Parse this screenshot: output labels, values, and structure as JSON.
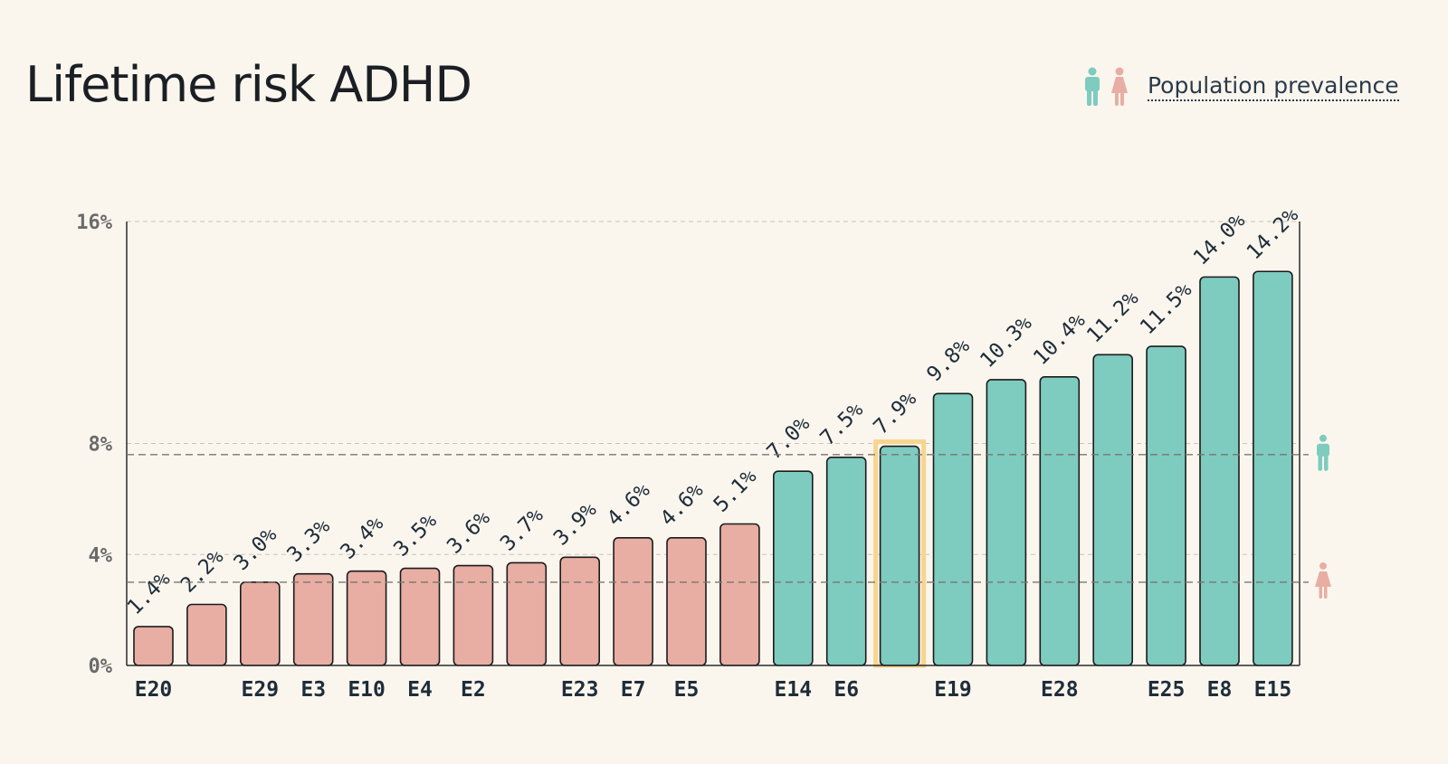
{
  "title": "Lifetime risk ADHD",
  "legend": {
    "label": "Population prevalence",
    "male_icon": "male-person-icon",
    "female_icon": "female-person-icon"
  },
  "colors": {
    "female": "#e8aea3",
    "male": "#7ecbbf",
    "highlight": "#f6d58e",
    "text": "#1f2d3a",
    "axis": "#6b6b6b"
  },
  "chart_data": {
    "type": "bar",
    "title": "Lifetime risk ADHD",
    "xlabel": "",
    "ylabel": "",
    "ylim": [
      0,
      16
    ],
    "yticks": [
      "0%",
      "4%",
      "8%",
      "16%"
    ],
    "ytick_values": [
      0,
      4,
      8,
      16
    ],
    "grid": true,
    "categories": [
      "E20",
      "",
      "E29",
      "E3",
      "E10",
      "E4",
      "E2",
      "",
      "E23",
      "E7",
      "E5",
      "",
      "E14",
      "E6",
      "",
      "E19",
      "",
      "E28",
      "",
      "E25",
      "E8",
      "E15"
    ],
    "values": [
      1.4,
      2.2,
      3.0,
      3.3,
      3.4,
      3.5,
      3.6,
      3.7,
      3.9,
      4.6,
      4.6,
      5.1,
      7.0,
      7.5,
      7.9,
      9.8,
      10.3,
      10.4,
      11.2,
      11.5,
      14.0,
      14.2
    ],
    "value_labels": [
      "1.4%",
      "2.2%",
      "3.0%",
      "3.3%",
      "3.4%",
      "3.5%",
      "3.6%",
      "3.7%",
      "3.9%",
      "4.6%",
      "4.6%",
      "5.1%",
      "7.0%",
      "7.5%",
      "7.9%",
      "9.8%",
      "10.3%",
      "10.4%",
      "11.2%",
      "11.5%",
      "14.0%",
      "14.2%"
    ],
    "groups": [
      "female",
      "female",
      "female",
      "female",
      "female",
      "female",
      "female",
      "female",
      "female",
      "female",
      "female",
      "female",
      "male",
      "male",
      "male",
      "male",
      "male",
      "male",
      "male",
      "male",
      "male",
      "male"
    ],
    "highlighted_index": 14,
    "reference_lines": [
      {
        "group": "male",
        "value": 7.6
      },
      {
        "group": "female",
        "value": 3.0
      }
    ]
  }
}
